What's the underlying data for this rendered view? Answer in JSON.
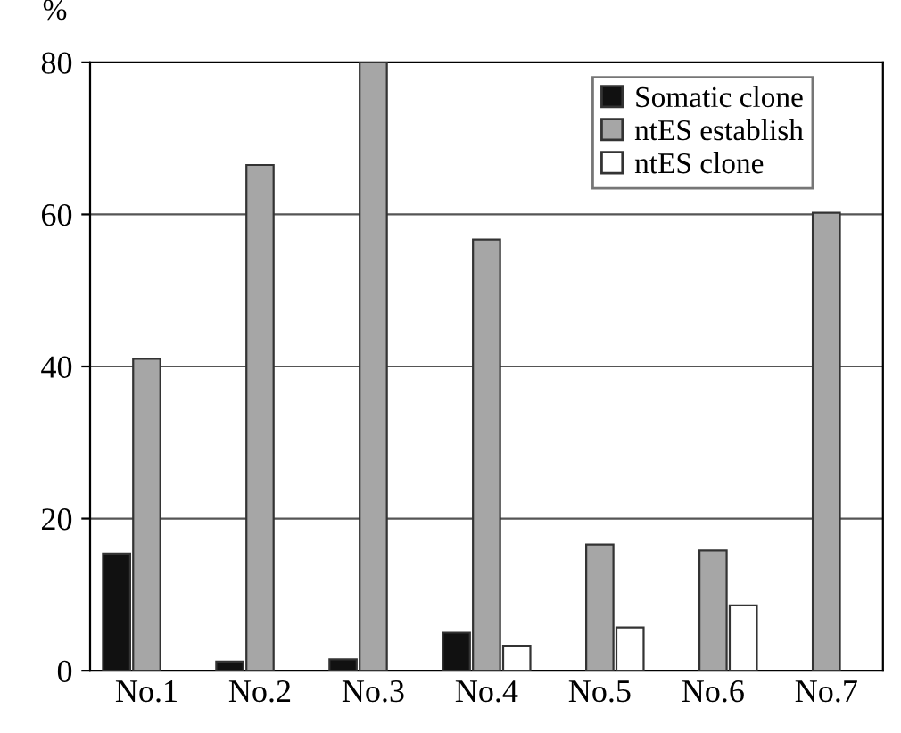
{
  "chart_data": {
    "type": "bar",
    "ylabel": "%",
    "categories": [
      "No.1",
      "No.2",
      "No.3",
      "No.4",
      "No.5",
      "No.6",
      "No.7"
    ],
    "series": [
      {
        "name": "Somatic clone",
        "color": "#111111",
        "values": [
          15.4,
          1.2,
          1.5,
          5,
          0,
          0,
          0
        ]
      },
      {
        "name": "ntES establish",
        "color": "#a6a6a6",
        "values": [
          41,
          66.5,
          80,
          56.7,
          16.6,
          15.8,
          60.2
        ]
      },
      {
        "name": "ntES clone",
        "color": "#ffffff",
        "values": [
          0,
          0,
          0,
          3.3,
          5.7,
          8.6,
          0
        ]
      }
    ],
    "ylim": [
      0,
      80
    ],
    "yticks": [
      0,
      20,
      40,
      60,
      80
    ],
    "grid": "y",
    "legend": "top right"
  }
}
